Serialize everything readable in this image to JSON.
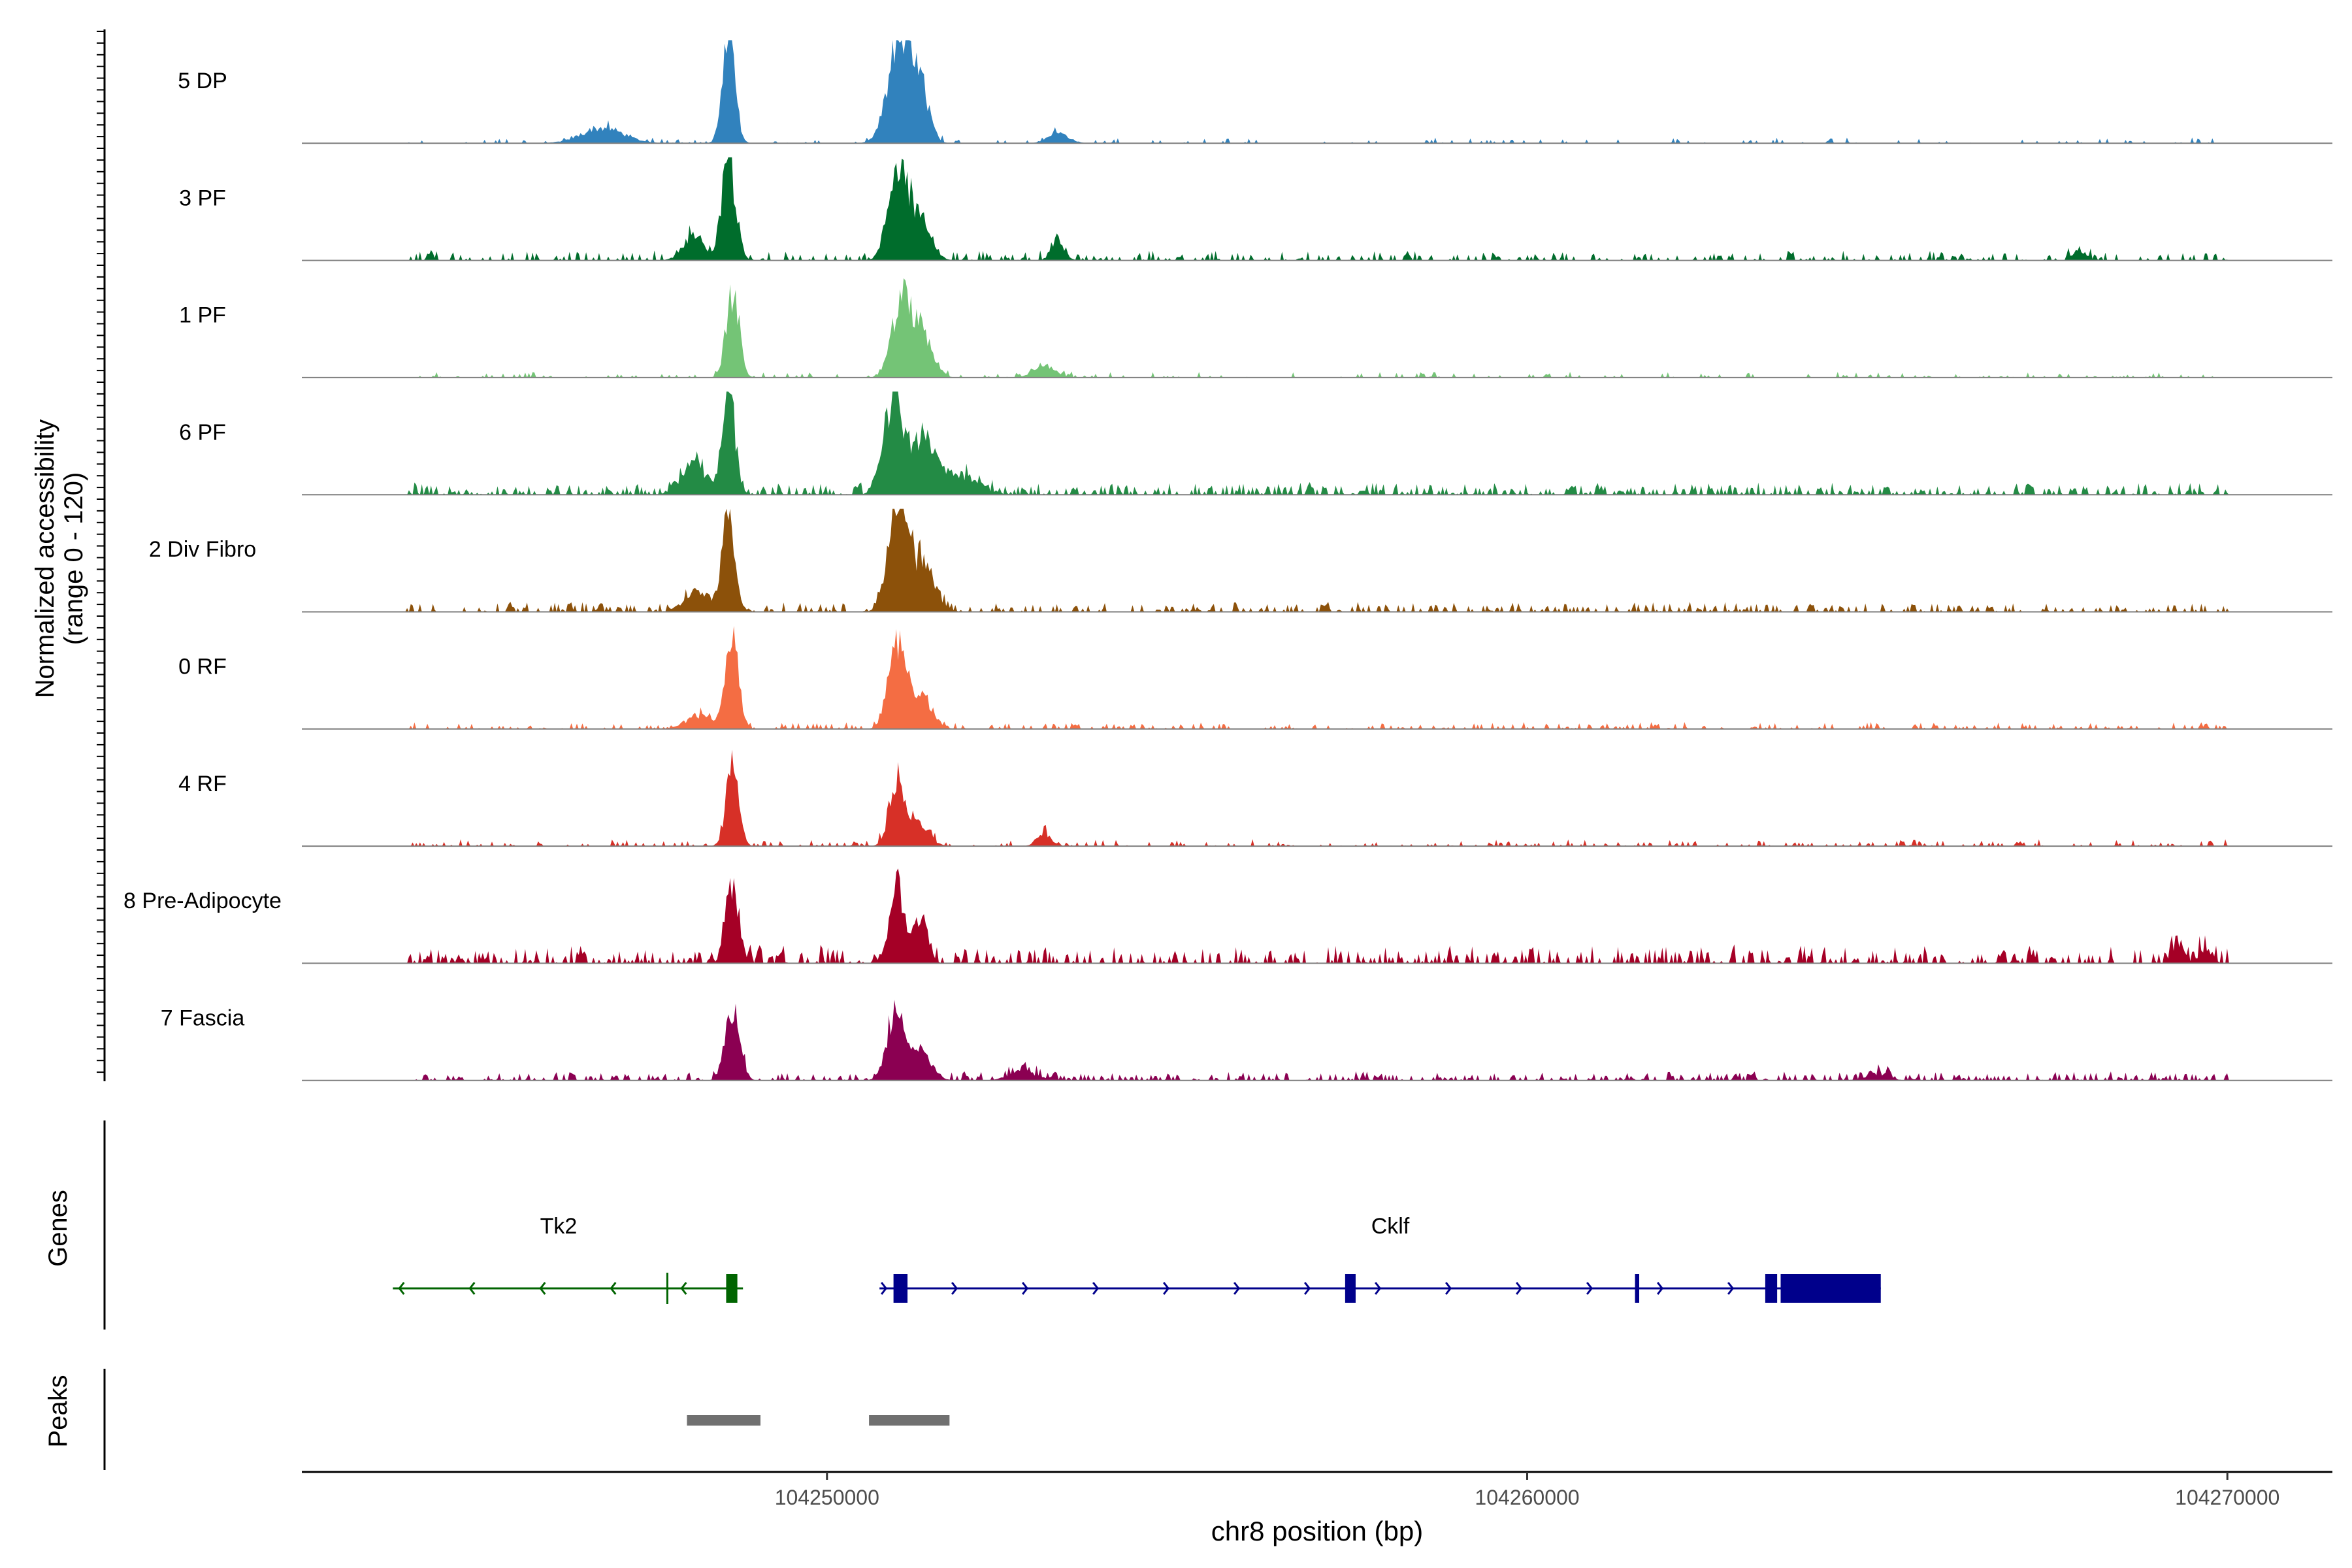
{
  "chart_data": {
    "type": "area",
    "title": "",
    "ylabel_line1": "Normalized accessibility",
    "ylabel_line2": "(range 0 - 120)",
    "ylim": [
      0,
      120
    ],
    "xlabel": "chr8 position (bp)",
    "xlim": [
      104242500,
      104271500
    ],
    "x_ticks": [
      104250000,
      104260000,
      104270000
    ],
    "x_tick_labels": [
      "104250000",
      "104260000",
      "104270000"
    ],
    "tracks": [
      {
        "name": "5 DP",
        "color": "#3182bd",
        "peaks": [
          [
            104248600,
            120,
            90
          ],
          [
            104251050,
            120,
            170
          ],
          [
            104251350,
            50,
            120
          ],
          [
            104246800,
            18,
            300
          ],
          [
            104253300,
            12,
            150
          ]
        ],
        "noise": 0.15,
        "noise_level": 6
      },
      {
        "name": "3 PF",
        "color": "#006d2c",
        "peaks": [
          [
            104248600,
            110,
            100
          ],
          [
            104251000,
            105,
            130
          ],
          [
            104251300,
            50,
            160
          ],
          [
            104248100,
            30,
            150
          ],
          [
            104253300,
            18,
            100
          ],
          [
            104267900,
            10,
            100
          ]
        ],
        "noise": 0.35,
        "noise_level": 10
      },
      {
        "name": "1 PF",
        "color": "#74c476",
        "peaks": [
          [
            104248650,
            100,
            90
          ],
          [
            104251050,
            85,
            130
          ],
          [
            104251350,
            55,
            150
          ],
          [
            104253100,
            15,
            150
          ]
        ],
        "noise": 0.2,
        "noise_level": 6
      },
      {
        "name": "6 PF",
        "color": "#238b45",
        "peaks": [
          [
            104248600,
            115,
            90
          ],
          [
            104250950,
            110,
            140
          ],
          [
            104251400,
            60,
            160
          ],
          [
            104248100,
            35,
            180
          ],
          [
            104251900,
            22,
            250
          ]
        ],
        "noise": 0.5,
        "noise_level": 12
      },
      {
        "name": "2 Div Fibro",
        "color": "#8c510a",
        "peaks": [
          [
            104248600,
            118,
            90
          ],
          [
            104251000,
            118,
            130
          ],
          [
            104251350,
            55,
            180
          ],
          [
            104248150,
            25,
            180
          ]
        ],
        "noise": 0.4,
        "noise_level": 10
      },
      {
        "name": "0 RF",
        "color": "#f46d43",
        "peaks": [
          [
            104248650,
            110,
            90
          ],
          [
            104251000,
            100,
            120
          ],
          [
            104251350,
            40,
            150
          ],
          [
            104248200,
            15,
            200
          ]
        ],
        "noise": 0.3,
        "noise_level": 7
      },
      {
        "name": "4 RF",
        "color": "#d73027",
        "peaks": [
          [
            104248650,
            90,
            90
          ],
          [
            104251000,
            75,
            110
          ],
          [
            104251300,
            25,
            150
          ],
          [
            104253100,
            15,
            100
          ]
        ],
        "noise": 0.3,
        "noise_level": 7
      },
      {
        "name": "8 Pre-Adipocyte",
        "color": "#a50026",
        "peaks": [
          [
            104248650,
            95,
            90
          ],
          [
            104251000,
            90,
            110
          ],
          [
            104251350,
            55,
            90
          ],
          [
            104269300,
            25,
            80
          ],
          [
            104269700,
            18,
            80
          ]
        ],
        "noise": 0.45,
        "noise_level": 18
      },
      {
        "name": "7 Fascia",
        "color": "#8b0052",
        "peaks": [
          [
            104248650,
            85,
            100
          ],
          [
            104251000,
            85,
            130
          ],
          [
            104251350,
            30,
            150
          ],
          [
            104252800,
            10,
            200
          ],
          [
            104265000,
            8,
            150
          ]
        ],
        "noise": 0.45,
        "noise_level": 9
      }
    ],
    "genes_label": "Genes",
    "genes": [
      {
        "name": "Tk2",
        "strand": "-",
        "start": 104243800,
        "end": 104248800,
        "color": "#006400",
        "exons": [
          [
            104248560,
            104248720
          ],
          [
            104247720,
            104247740
          ]
        ]
      },
      {
        "name": "Cklf",
        "strand": "+",
        "start": 104250750,
        "end": 104265050,
        "color": "#00008b",
        "exons": [
          [
            104250950,
            104251150
          ],
          [
            104257400,
            104257550
          ],
          [
            104261540,
            104261600
          ],
          [
            104263400,
            104263570
          ],
          [
            104263620,
            104265050
          ]
        ]
      }
    ],
    "peaks_label": "Peaks",
    "peak_regions": [
      [
        104248000,
        104249050
      ],
      [
        104250600,
        104251750
      ]
    ]
  }
}
